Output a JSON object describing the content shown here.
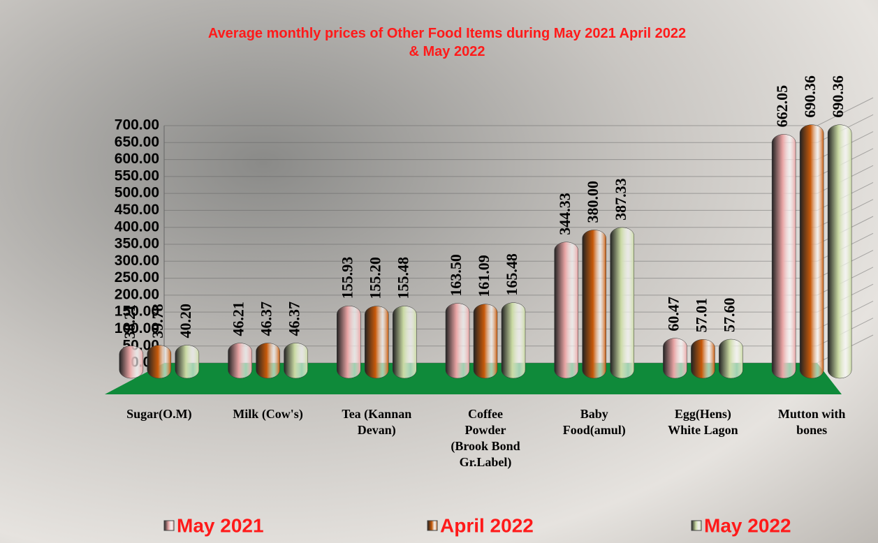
{
  "chart_data": {
    "type": "bar",
    "title": "Average monthly prices of Other Food Items during  May 2021  April 2022 & May 2022",
    "categories": [
      "Sugar(O.M)",
      "Milk (Cow's)",
      "Tea (Kannan Devan)",
      "Coffee Powder (Brook Bond Gr.Label)",
      "Baby Food(amul)",
      "Egg(Hens) White Lagon",
      "Mutton with bones"
    ],
    "series": [
      {
        "name": "May 2021",
        "color": "#e8a4a4",
        "values": [
          38.21,
          46.21,
          155.93,
          163.5,
          344.33,
          60.47,
          662.05
        ],
        "value_labels": [
          "38.21",
          "46.21",
          "155.93",
          "163.50",
          "344.33",
          "60.47",
          "662.05"
        ]
      },
      {
        "name": "April 2022",
        "color": "#c85a0a",
        "values": [
          39.78,
          46.37,
          155.2,
          161.09,
          380.0,
          57.01,
          690.36
        ],
        "value_labels": [
          "39.78",
          "46.37",
          "155.20",
          "161.09",
          "380.00",
          "57.01",
          "690.36"
        ]
      },
      {
        "name": "May 2022",
        "color": "#c9d9a3",
        "values": [
          40.2,
          46.37,
          155.48,
          165.48,
          387.33,
          57.6,
          690.36
        ],
        "value_labels": [
          "40.20",
          "46.37",
          "155.48",
          "165.48",
          "387.33",
          "57.60",
          "690.36"
        ]
      }
    ],
    "ylim": [
      0,
      700
    ],
    "yticks": [
      {
        "value": 0,
        "label": "0.00"
      },
      {
        "value": 50,
        "label": "50.00"
      },
      {
        "value": 100,
        "label": "100.00"
      },
      {
        "value": 150,
        "label": "150.00"
      },
      {
        "value": 200,
        "label": "200.00"
      },
      {
        "value": 250,
        "label": "250.00"
      },
      {
        "value": 300,
        "label": "300.00"
      },
      {
        "value": 350,
        "label": "350.00"
      },
      {
        "value": 400,
        "label": "400.00"
      },
      {
        "value": 450,
        "label": "450.00"
      },
      {
        "value": 500,
        "label": "500.00"
      },
      {
        "value": 550,
        "label": "550.00"
      },
      {
        "value": 600,
        "label": "600.00"
      },
      {
        "value": 650,
        "label": "650.00"
      },
      {
        "value": 700,
        "label": "700.00"
      }
    ],
    "grid": true,
    "legend": "bottom"
  }
}
